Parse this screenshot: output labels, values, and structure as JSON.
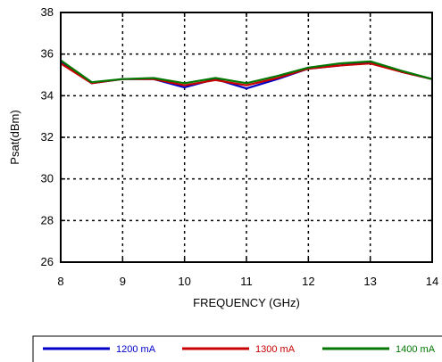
{
  "chart_data": {
    "type": "line",
    "xlabel": "FREQUENCY (GHz)",
    "ylabel": "Psat(dBm)",
    "xlim": [
      8,
      14
    ],
    "ylim": [
      26,
      38
    ],
    "xticks": [
      "8",
      "9",
      "10",
      "11",
      "12",
      "13",
      "14"
    ],
    "yticks": [
      "26",
      "28",
      "30",
      "32",
      "34",
      "36",
      "38"
    ],
    "grid": "dotted",
    "legend_position": "bottom",
    "series": [
      {
        "name": "1200 mA",
        "color": "#0000c8",
        "x": [
          8,
          8.5,
          9,
          9.5,
          10,
          10.5,
          11,
          11.5,
          12,
          12.5,
          13,
          13.5,
          14
        ],
        "y": [
          35.6,
          34.6,
          34.8,
          34.8,
          34.4,
          34.8,
          34.35,
          34.8,
          35.3,
          35.45,
          35.6,
          35.15,
          34.8
        ]
      },
      {
        "name": "1300 mA",
        "color": "#c80000",
        "x": [
          8,
          8.5,
          9,
          9.5,
          10,
          10.5,
          11,
          11.5,
          12,
          12.5,
          13,
          13.5,
          14
        ],
        "y": [
          35.55,
          34.6,
          34.8,
          34.8,
          34.5,
          34.75,
          34.5,
          34.85,
          35.3,
          35.45,
          35.55,
          35.15,
          34.8
        ]
      },
      {
        "name": "1400 mA",
        "color": "#007800",
        "x": [
          8,
          8.5,
          9,
          9.5,
          10,
          10.5,
          11,
          11.5,
          12,
          12.5,
          13,
          13.5,
          14
        ],
        "y": [
          35.7,
          34.65,
          34.8,
          34.85,
          34.6,
          34.85,
          34.6,
          34.95,
          35.35,
          35.55,
          35.65,
          35.2,
          34.8
        ]
      }
    ]
  }
}
